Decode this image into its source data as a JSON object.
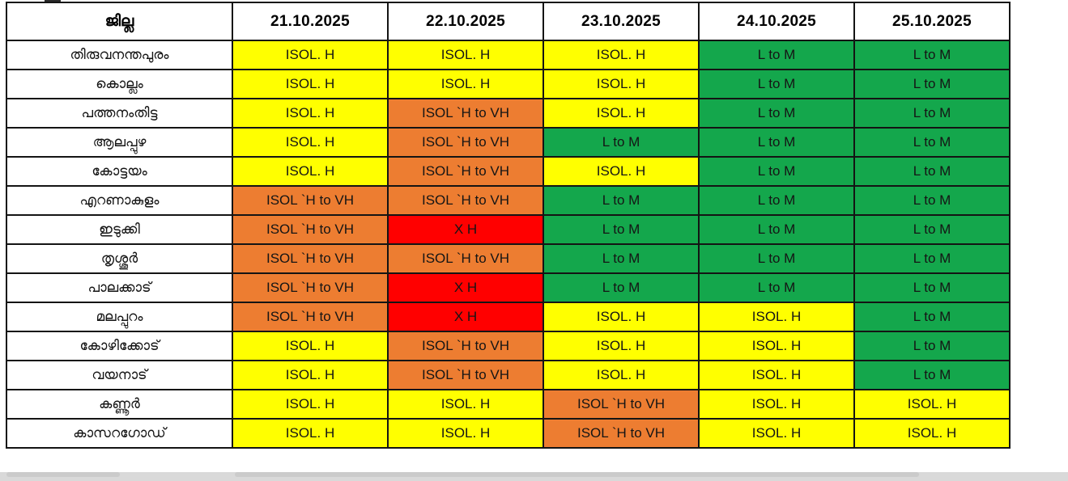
{
  "forecast_table": {
    "header": {
      "district_label": "ജില്ല",
      "dates": [
        "21.10.2025",
        "22.10.2025",
        "23.10.2025",
        "24.10.2025",
        "25.10.2025"
      ]
    },
    "categories": {
      "Y": {
        "label": "ISOL. H",
        "color": "#FFFF00"
      },
      "O": {
        "label": "ISOL `H to VH",
        "color": "#ED7D31"
      },
      "R": {
        "label": "X H",
        "color": "#FF0000"
      },
      "G": {
        "label": "L to M",
        "color": "#14A74C"
      }
    },
    "rows": [
      {
        "district": "തിരുവനന്തപുരം",
        "cells": [
          "Y",
          "Y",
          "Y",
          "G",
          "G"
        ]
      },
      {
        "district": "കൊല്ലം",
        "cells": [
          "Y",
          "Y",
          "Y",
          "G",
          "G"
        ]
      },
      {
        "district": "പത്തനംതിട്ട",
        "cells": [
          "Y",
          "O",
          "Y",
          "G",
          "G"
        ]
      },
      {
        "district": "ആലപ്പുഴ",
        "cells": [
          "Y",
          "O",
          "G",
          "G",
          "G"
        ]
      },
      {
        "district": "കോട്ടയം",
        "cells": [
          "Y",
          "O",
          "Y",
          "G",
          "G"
        ]
      },
      {
        "district": "എറണാകുളം",
        "cells": [
          "O",
          "O",
          "G",
          "G",
          "G"
        ]
      },
      {
        "district": "ഇടുക്കി",
        "cells": [
          "O",
          "R",
          "G",
          "G",
          "G"
        ]
      },
      {
        "district": "തൃശ്ശൂർ",
        "cells": [
          "O",
          "O",
          "G",
          "G",
          "G"
        ]
      },
      {
        "district": "പാലക്കാട്",
        "cells": [
          "O",
          "R",
          "G",
          "G",
          "G"
        ]
      },
      {
        "district": "മലപ്പുറം",
        "cells": [
          "O",
          "R",
          "Y",
          "Y",
          "G"
        ]
      },
      {
        "district": "കോഴിക്കോട്",
        "cells": [
          "Y",
          "O",
          "Y",
          "Y",
          "G"
        ]
      },
      {
        "district": "വയനാട്",
        "cells": [
          "Y",
          "O",
          "Y",
          "Y",
          "G"
        ]
      },
      {
        "district": "കണ്ണൂർ",
        "cells": [
          "Y",
          "Y",
          "O",
          "Y",
          "Y"
        ]
      },
      {
        "district": "കാസറഗോഡ്",
        "cells": [
          "Y",
          "Y",
          "O",
          "Y",
          "Y"
        ]
      }
    ]
  }
}
